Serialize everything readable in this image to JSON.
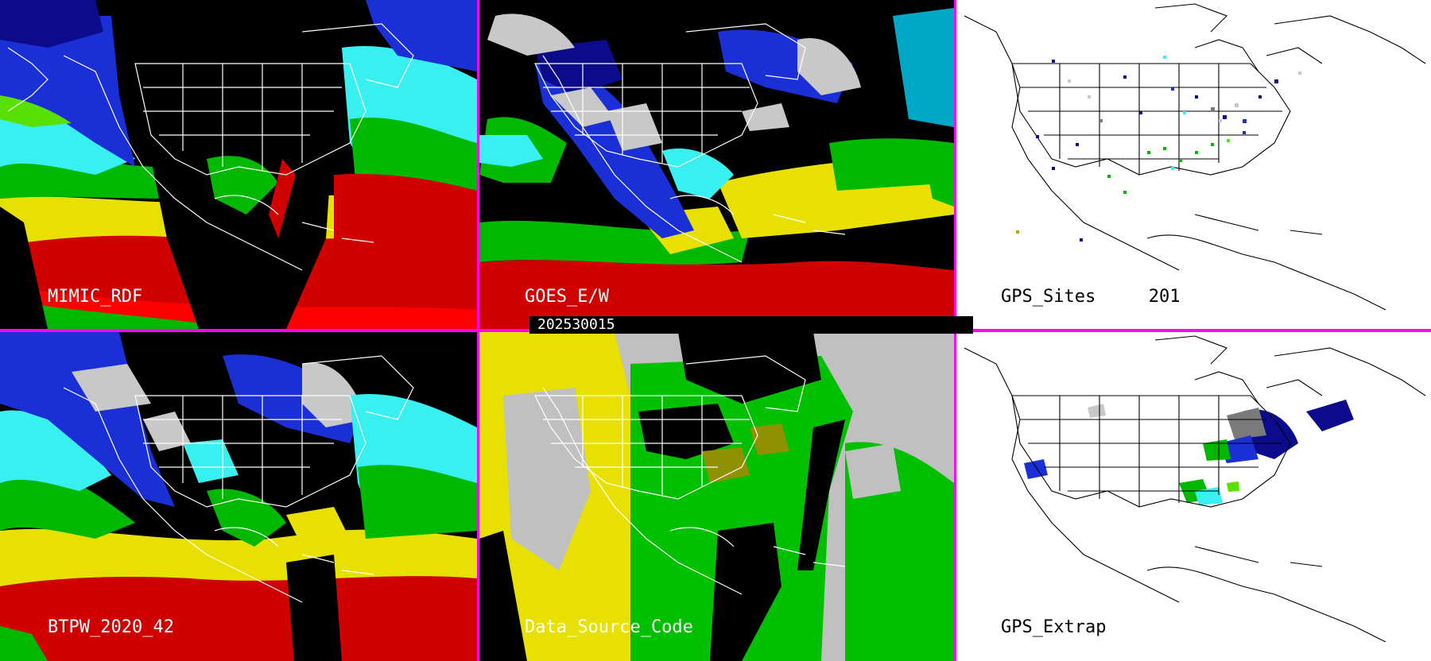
{
  "panels": [
    {
      "id": "mimic",
      "label": "MIMIC_RDF",
      "style": "dark"
    },
    {
      "id": "goes",
      "label": "GOES_E/W",
      "style": "dark"
    },
    {
      "id": "gps-sites",
      "label": "GPS_Sites",
      "count": "201",
      "style": "light"
    },
    {
      "id": "btpw",
      "label": "BTPW_2020_42",
      "style": "dark"
    },
    {
      "id": "data-source",
      "label": "Data_Source_Code",
      "style": "dark"
    },
    {
      "id": "gps-extrap",
      "label": "GPS_Extrap",
      "style": "light"
    }
  ],
  "timestamp": "202530015",
  "colors": {
    "divider": "#ff00ff",
    "pw_scale": [
      "#000000",
      "#7a7a7a",
      "#c8c8c8",
      "#0b0b8c",
      "#1a2fd6",
      "#00a8c8",
      "#38f0f0",
      "#00b800",
      "#58e000",
      "#e8e000",
      "#c8a000",
      "#d00000",
      "#ff0000",
      "#a00070"
    ],
    "source_codes": [
      "#e8e000",
      "#c0c0c0",
      "#00c000",
      "#000000",
      "#909000"
    ]
  }
}
